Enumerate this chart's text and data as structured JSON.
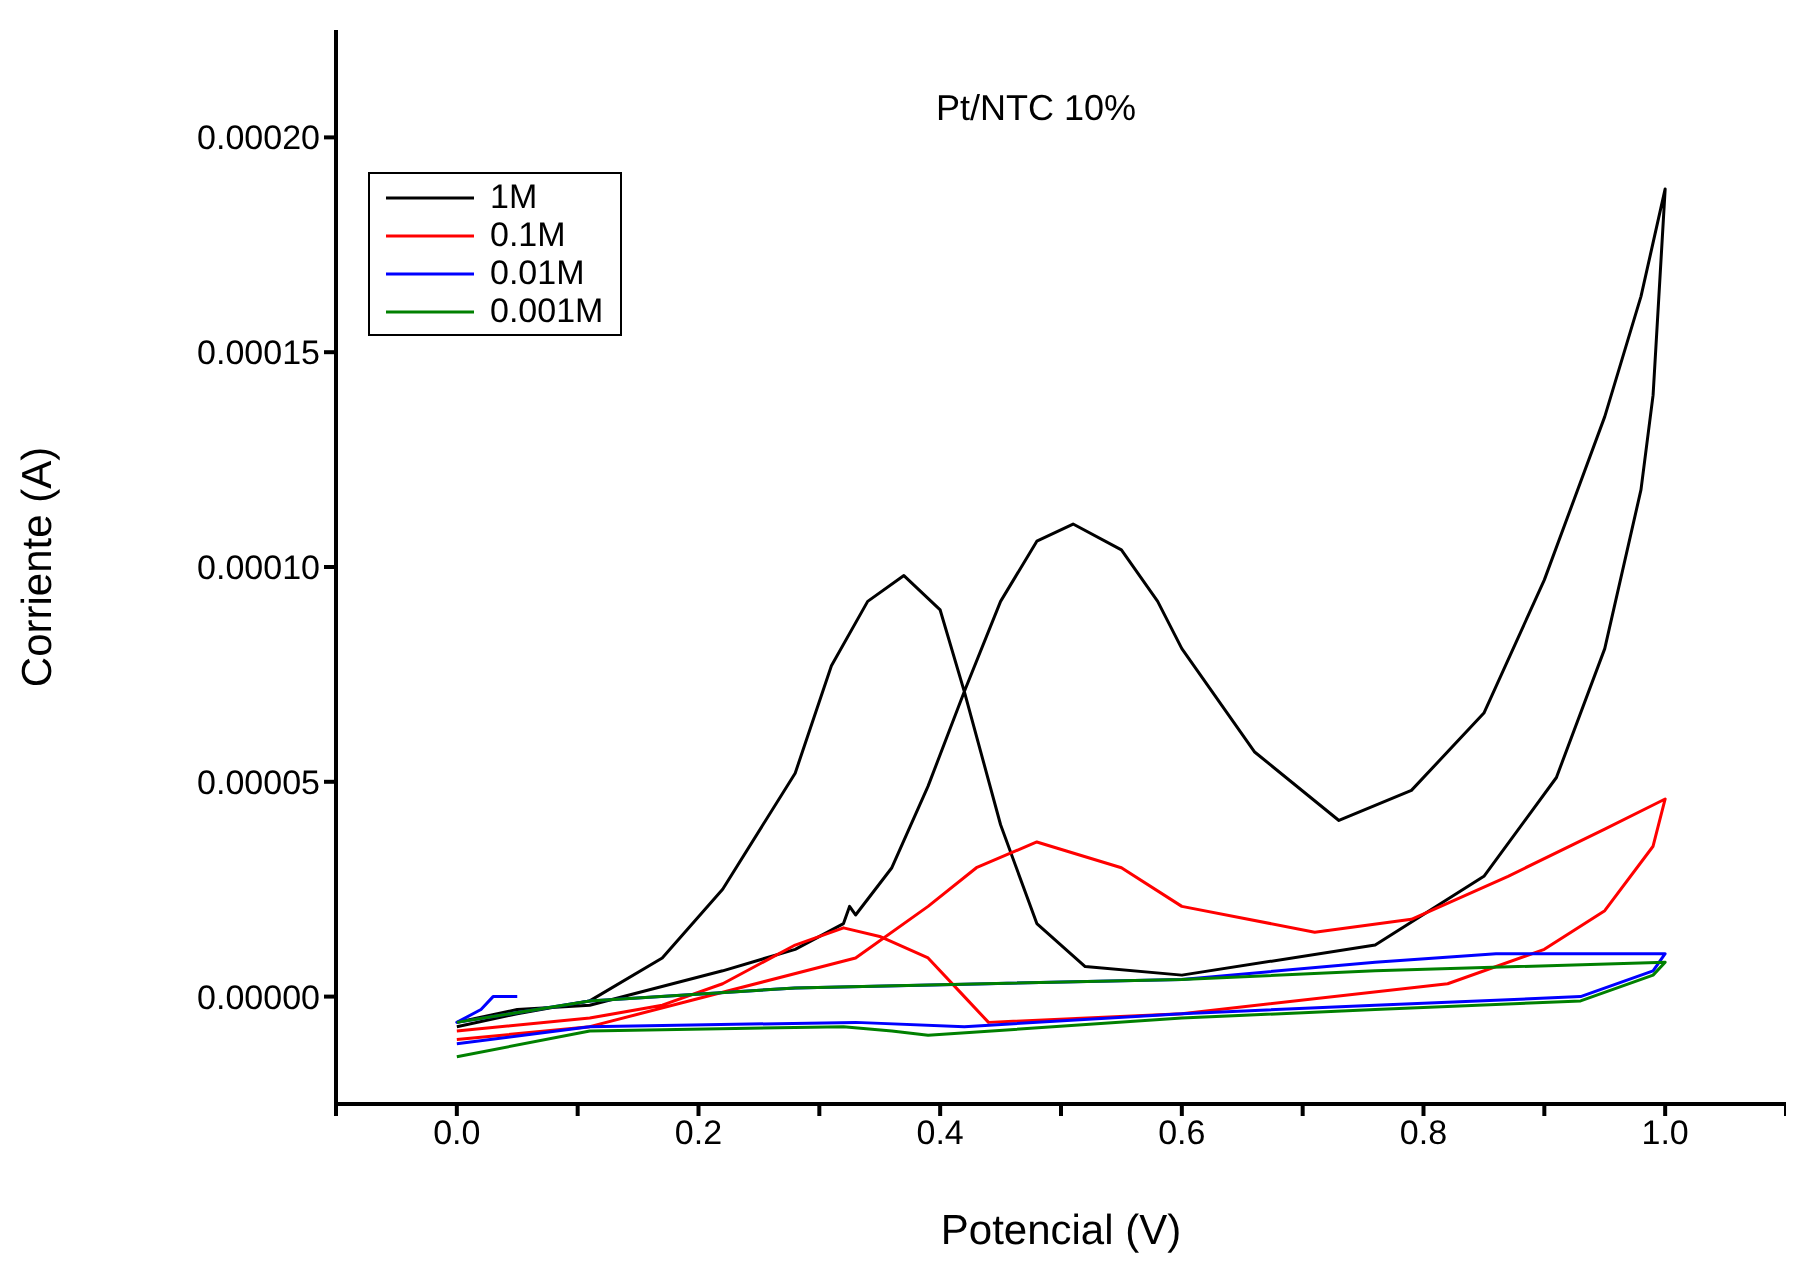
{
  "chart_data": {
    "type": "line",
    "title": "Pt/NTC 10%",
    "xlabel": "Potencial (V)",
    "ylabel": "Corriente (A)",
    "xlim": [
      -0.1,
      1.1
    ],
    "ylim": [
      -2.5e-05,
      0.000225
    ],
    "xticks": [
      {
        "value": -0.1,
        "label": null
      },
      {
        "value": 0,
        "label": "0.0"
      },
      {
        "value": 0.1,
        "label": null
      },
      {
        "value": 0.2,
        "label": "0.2"
      },
      {
        "value": 0.3,
        "label": null
      },
      {
        "value": 0.4,
        "label": "0.4"
      },
      {
        "value": 0.5,
        "label": null
      },
      {
        "value": 0.6,
        "label": "0.6"
      },
      {
        "value": 0.7,
        "label": null
      },
      {
        "value": 0.8,
        "label": "0.8"
      },
      {
        "value": 0.9,
        "label": null
      },
      {
        "value": 1.0,
        "label": "1.0"
      },
      {
        "value": 1.1,
        "label": null
      }
    ],
    "yticks": [
      {
        "value": 0,
        "label": "0.00000"
      },
      {
        "value": 5e-05,
        "label": "0.00005"
      },
      {
        "value": 0.0001,
        "label": "0.00010"
      },
      {
        "value": 0.00015,
        "label": "0.00015"
      },
      {
        "value": 0.0002,
        "label": "0.00020"
      }
    ],
    "grid": false,
    "legend": "top left",
    "marker": "none",
    "series": [
      {
        "name": "1M",
        "color": "#000000",
        "x": [
          0,
          0.05,
          0.11,
          0.22,
          0.28,
          0.32,
          0.325,
          0.33,
          0.36,
          0.39,
          0.42,
          0.45,
          0.48,
          0.51,
          0.55,
          0.58,
          0.6,
          0.66,
          0.73,
          0.79,
          0.85,
          0.9,
          0.95,
          0.98,
          1.0,
          0.99,
          0.98,
          0.95,
          0.91,
          0.85,
          0.76,
          0.6,
          0.52,
          0.48,
          0.45,
          0.42,
          0.4,
          0.37,
          0.34,
          0.31,
          0.28,
          0.22,
          0.17,
          0.11,
          0.05,
          0
        ],
        "values": [
          -6e-06,
          -3e-06,
          -2e-06,
          6e-06,
          1.1e-05,
          1.7e-05,
          2.1e-05,
          1.9e-05,
          3e-05,
          4.9e-05,
          7.1e-05,
          9.2e-05,
          0.000106,
          0.00011,
          0.000104,
          9.2e-05,
          8.1e-05,
          5.7e-05,
          4.1e-05,
          4.8e-05,
          6.6e-05,
          9.7e-05,
          0.000135,
          0.000163,
          0.000188,
          0.00014,
          0.000118,
          8.1e-05,
          5.1e-05,
          2.8e-05,
          1.2e-05,
          5e-06,
          7e-06,
          1.7e-05,
          4e-05,
          7.1e-05,
          9e-05,
          9.8e-05,
          9.2e-05,
          7.7e-05,
          5.2e-05,
          2.5e-05,
          9e-06,
          -1e-06,
          -4e-06,
          -7e-06
        ]
      },
      {
        "name": "0.1M",
        "color": "#ff0000",
        "x": [
          0,
          0.11,
          0.22,
          0.33,
          0.39,
          0.43,
          0.48,
          0.55,
          0.6,
          0.71,
          0.79,
          0.87,
          0.95,
          1.0,
          0.99,
          0.95,
          0.9,
          0.82,
          0.6,
          0.44,
          0.42,
          0.39,
          0.35,
          0.32,
          0.28,
          0.22,
          0.17,
          0.11,
          0
        ],
        "values": [
          -1e-05,
          -7e-06,
          1e-06,
          9e-06,
          2.1e-05,
          3e-05,
          3.6e-05,
          3e-05,
          2.1e-05,
          1.5e-05,
          1.8e-05,
          2.8e-05,
          3.9e-05,
          4.6e-05,
          3.5e-05,
          2e-05,
          1.1e-05,
          3e-06,
          -4e-06,
          -6e-06,
          0,
          9e-06,
          1.4e-05,
          1.6e-05,
          1.2e-05,
          3e-06,
          -2e-06,
          -5e-06,
          -8e-06
        ]
      },
      {
        "name": "0.01M",
        "color": "#0000ff",
        "x": [
          0.05,
          0.03,
          0.02,
          0,
          0.11,
          0.28,
          0.44,
          0.6,
          0.76,
          0.86,
          1.0,
          0.99,
          0.93,
          0.76,
          0.6,
          0.42,
          0.33,
          0.11,
          0
        ],
        "values": [
          0,
          0,
          -3e-06,
          -6e-06,
          -1e-06,
          2e-06,
          3e-06,
          4e-06,
          8e-06,
          1e-05,
          1e-05,
          6e-06,
          0,
          -2e-06,
          -4e-06,
          -7e-06,
          -6e-06,
          -7e-06,
          -1.1e-05
        ]
      },
      {
        "name": "0.001M",
        "color": "#008000",
        "x": [
          0,
          0.11,
          0.28,
          0.6,
          0.76,
          1.0,
          0.99,
          0.93,
          0.76,
          0.6,
          0.39,
          0.36,
          0.32,
          0.11,
          0
        ],
        "values": [
          -6e-06,
          -1e-06,
          2e-06,
          4e-06,
          6e-06,
          8e-06,
          5e-06,
          -1e-06,
          -3e-06,
          -5e-06,
          -9e-06,
          -8e-06,
          -7e-06,
          -8e-06,
          -1.4e-05
        ]
      }
    ]
  }
}
